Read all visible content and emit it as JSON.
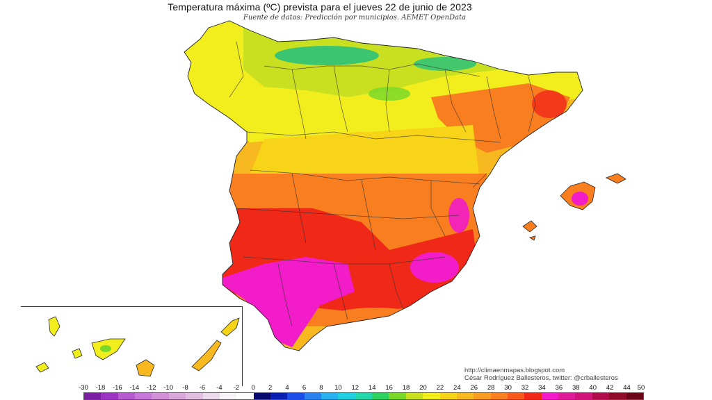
{
  "title": "Temperatura máxima (ºC) prevista para el jueves 22 de junio de 2023",
  "subtitle": "Fuente de datos: Predicción por municipios. AEMET OpenData",
  "credits": {
    "url": "http://climaenmapas.blogspot.com",
    "author": "César Rodríguez Ballesteros, twitter: @crballesteros"
  },
  "legend": {
    "labels": [
      "-30",
      "-18",
      "-16",
      "-14",
      "-12",
      "-10",
      "-8",
      "-6",
      "-4",
      "-2",
      "0",
      "2",
      "4",
      "6",
      "8",
      "10",
      "12",
      "14",
      "16",
      "18",
      "20",
      "22",
      "24",
      "26",
      "28",
      "30",
      "32",
      "34",
      "36",
      "38",
      "40",
      "42",
      "44",
      "50"
    ],
    "colors": [
      "#7a1fa0",
      "#9b35c2",
      "#b45bd0",
      "#c777da",
      "#d390d8",
      "#dba8db",
      "#e2bfe2",
      "#eadaea",
      "#f6f4f6",
      "#ffffff",
      "#080a70",
      "#0a1fb0",
      "#1b4ee8",
      "#2a82f0",
      "#28b0f0",
      "#20d0e0",
      "#22d8a8",
      "#2ed060",
      "#7ad82a",
      "#c8e020",
      "#f2ee1e",
      "#f8d418",
      "#f8b820",
      "#f89c22",
      "#f88020",
      "#f85a1e",
      "#f02818",
      "#f21cc8",
      "#e01c98",
      "#d01478",
      "#b00c4c",
      "#900a2a",
      "#6a0618"
    ]
  },
  "map": {
    "region": "España",
    "colors": {
      "cool": "#22c080",
      "mild": "#c8e020",
      "warm": "#f2ee1e",
      "hot": "#f8b820",
      "very_hot": "#f87e20",
      "extreme": "#f02818",
      "peak": "#f21cc8"
    }
  }
}
